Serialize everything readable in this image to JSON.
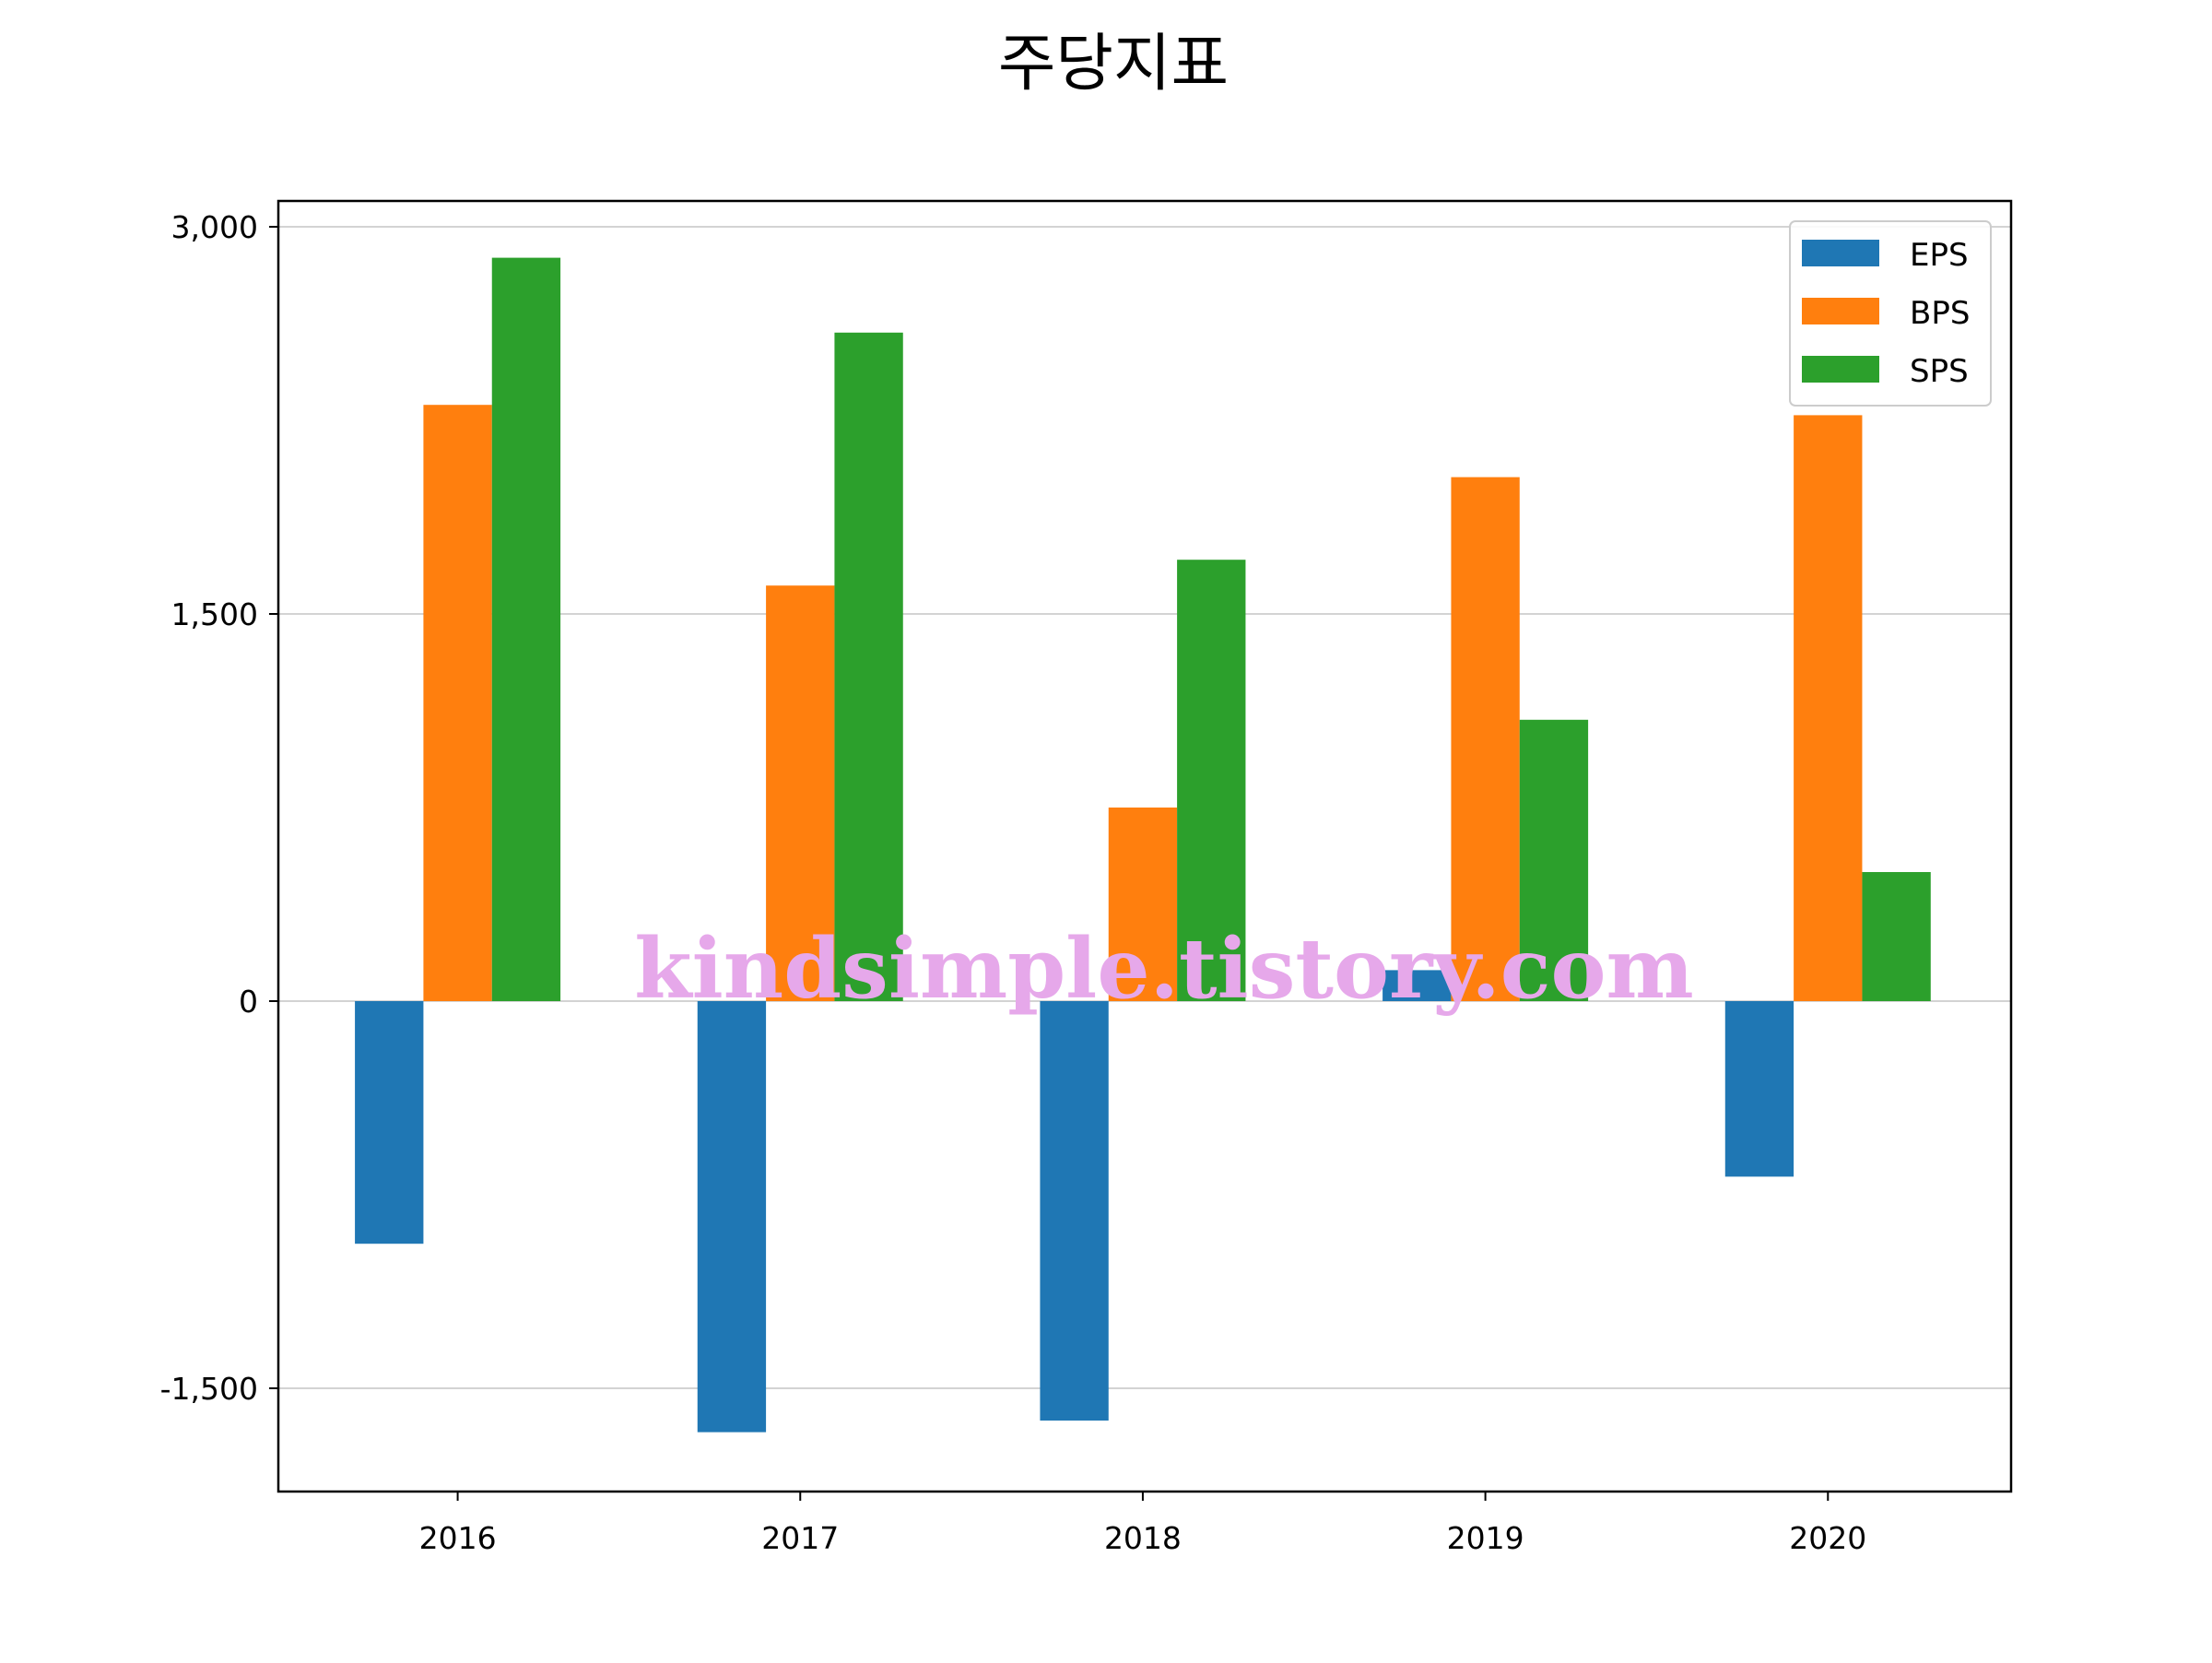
{
  "chart_data": {
    "type": "bar",
    "title": "주당지표",
    "xlabel": "",
    "ylabel": "",
    "categories": [
      "2016",
      "2017",
      "2018",
      "2019",
      "2020"
    ],
    "series": [
      {
        "name": "EPS",
        "color": "#1f77b4",
        "values": [
          -940,
          -1670,
          -1625,
          120,
          -680
        ]
      },
      {
        "name": "BPS",
        "color": "#ff7f0e",
        "values": [
          2310,
          1610,
          750,
          2030,
          2270
        ]
      },
      {
        "name": "SPS",
        "color": "#2ca02c",
        "values": [
          2880,
          2590,
          1710,
          1090,
          500
        ]
      }
    ],
    "ylim": [
      -1900,
      3100
    ],
    "yticks": [
      -1500,
      0,
      1500,
      3000
    ],
    "ytick_labels": [
      "-1,500",
      "0",
      "1,500",
      "3,000"
    ],
    "grid": "y",
    "legend_position": "top-right"
  },
  "watermark": "kindsimple.tistory.com"
}
